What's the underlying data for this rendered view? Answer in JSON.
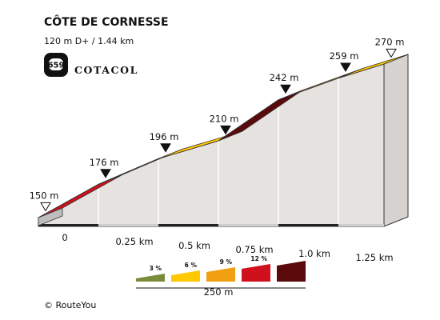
{
  "header": {
    "title": "CÔTE DE CORNESSE",
    "subtitle": "120 m D+ / 1.44 km",
    "badge_number": "659",
    "brand": "COTACOL"
  },
  "footer": {
    "copyright": "© RouteYou"
  },
  "colors": {
    "0-3": "#7a8c3c",
    "3-6": "#ffc800",
    "6-9": "#f0a010",
    "9-12": "#d0101c",
    "12+": "#5a0a0a",
    "side_face": "#e6e2e0",
    "edge": "#333333"
  },
  "chart_data": {
    "type": "area",
    "title": "CÔTE DE CORNESSE",
    "subtitle": "120 m D+ / 1.44 km",
    "x_unit": "km",
    "xlim": [
      0,
      1.44
    ],
    "ylim": [
      150,
      270
    ],
    "points": [
      {
        "x": 0,
        "y": 150,
        "label": "150 m",
        "marker": "outline"
      },
      {
        "x": 0.25,
        "y": 176,
        "label": "176 m",
        "marker": "filled"
      },
      {
        "x": 0.5,
        "y": 196,
        "label": "196 m",
        "marker": "filled"
      },
      {
        "x": 0.75,
        "y": 210,
        "label": "210 m",
        "marker": "filled"
      },
      {
        "x": 1.0,
        "y": 242,
        "label": "242 m",
        "marker": "filled"
      },
      {
        "x": 1.25,
        "y": 259,
        "label": "259 m",
        "marker": "filled"
      },
      {
        "x": 1.44,
        "y": 270,
        "label": "270 m",
        "marker": "outline"
      }
    ],
    "x_ticks": [
      {
        "value": 0,
        "label": "0"
      },
      {
        "value": 0.25,
        "label": "0.25 km"
      },
      {
        "value": 0.5,
        "label": "0.5 km"
      },
      {
        "value": 0.75,
        "label": "0.75 km"
      },
      {
        "value": 1.0,
        "label": "1.0 km"
      },
      {
        "value": 1.25,
        "label": "1.25 km"
      }
    ],
    "segment_colors": [
      "#d0101c",
      "#f0a010",
      "#ffc800",
      "#5a0a0a",
      "#f0a010",
      "#ffc800"
    ],
    "legend": {
      "entries": [
        {
          "label": "3 %",
          "color": "#7a8c3c"
        },
        {
          "label": "6 %",
          "color": "#ffc800"
        },
        {
          "label": "9 %",
          "color": "#f0a010"
        },
        {
          "label": "12 %",
          "color": "#d0101c"
        },
        {
          "label": "",
          "color": "#5a0a0a"
        }
      ],
      "scale_label": "250 m"
    }
  }
}
